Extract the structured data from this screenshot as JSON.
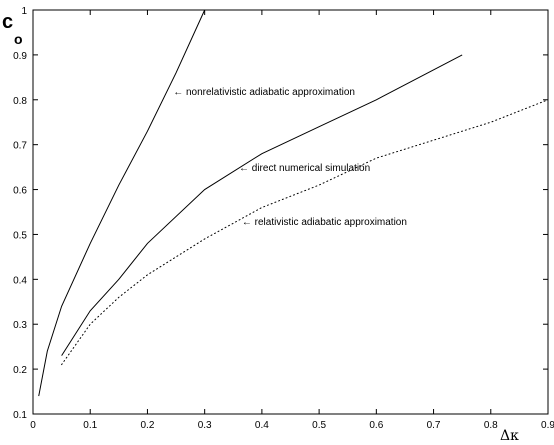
{
  "chart_data": {
    "type": "line",
    "xlim": [
      0,
      0.9
    ],
    "ylim": [
      0.1,
      1
    ],
    "x_ticks": [
      "0",
      "0.1",
      "0.2",
      "0.3",
      "0.4",
      "0.5",
      "0.6",
      "0.7",
      "0.8",
      "0.9"
    ],
    "y_ticks": [
      "0.1",
      "0.2",
      "0.3",
      "0.4",
      "0.5",
      "0.6",
      "0.7",
      "0.8",
      "0.9",
      "1"
    ],
    "x_tick_values": [
      0,
      0.1,
      0.2,
      0.3,
      0.4,
      0.5,
      0.6,
      0.7,
      0.8,
      0.9
    ],
    "y_tick_values": [
      0.1,
      0.2,
      0.3,
      0.4,
      0.5,
      0.6,
      0.7,
      0.8,
      0.9,
      1
    ],
    "ylabel_main": "c",
    "ylabel_sub": "o",
    "xlabel": "Δκ",
    "grid": false,
    "series": [
      {
        "style": "solid",
        "x": [
          0.01,
          0.025,
          0.05,
          0.1,
          0.15,
          0.2,
          0.25,
          0.3
        ],
        "y": [
          0.14,
          0.24,
          0.34,
          0.48,
          0.61,
          0.73,
          0.86,
          1.0
        ]
      },
      {
        "style": "solid",
        "x": [
          0.05,
          0.1,
          0.15,
          0.2,
          0.3,
          0.4,
          0.5,
          0.6,
          0.75
        ],
        "y": [
          0.23,
          0.33,
          0.4,
          0.48,
          0.6,
          0.68,
          0.74,
          0.8,
          0.9
        ]
      },
      {
        "style": "dotted",
        "x": [
          0.05,
          0.1,
          0.15,
          0.2,
          0.3,
          0.4,
          0.5,
          0.6,
          0.7,
          0.8,
          0.9
        ],
        "y": [
          0.21,
          0.3,
          0.36,
          0.41,
          0.49,
          0.56,
          0.61,
          0.67,
          0.71,
          0.75,
          0.8
        ]
      }
    ],
    "annotations": [
      {
        "text": "← nonrelativistic adiabatic approximation",
        "x": 0.245,
        "y": 0.82
      },
      {
        "text": "← direct numerical simulation",
        "x": 0.36,
        "y": 0.65
      },
      {
        "text": "← relativistic adiabatic approximation",
        "x": 0.365,
        "y": 0.53
      }
    ]
  }
}
